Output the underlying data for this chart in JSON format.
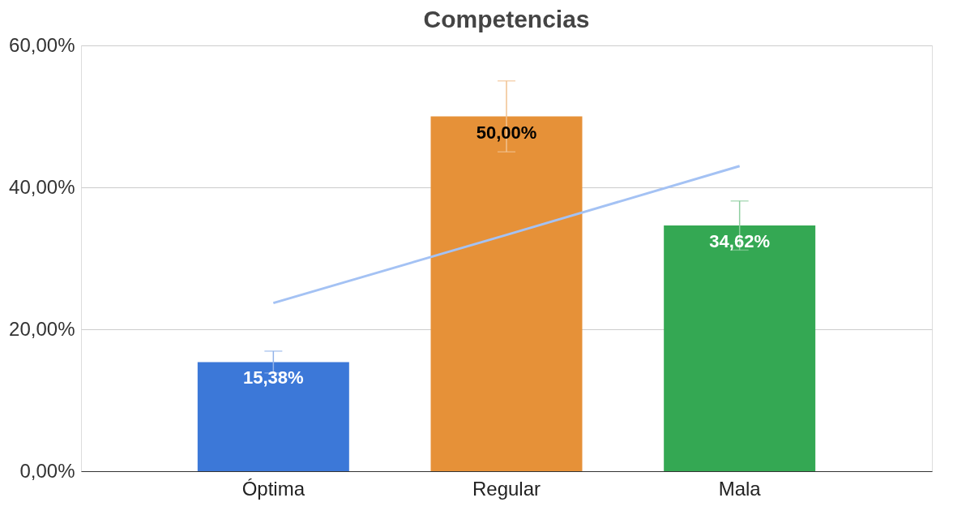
{
  "chart_data": {
    "type": "bar",
    "title": "Competencias",
    "categories": [
      "Óptima",
      "Regular",
      "Mala"
    ],
    "series": [
      {
        "values": [
          15.38,
          50.0,
          34.62
        ],
        "colors": [
          "#3c78d8",
          "#e69138",
          "#34a853"
        ],
        "errors": [
          1.54,
          5.0,
          3.46
        ],
        "value_labels": [
          "15,38%",
          "50,00%",
          "34,62%"
        ]
      },
      {
        "type": "line",
        "x": [
          "Óptima",
          "Regular",
          "Mala"
        ],
        "values": [
          23.7,
          33.3,
          43.0
        ],
        "color": "#a4c2f4"
      }
    ],
    "ylim": [
      0,
      60
    ],
    "yticks": [
      {
        "value": 0,
        "label": "0,00%"
      },
      {
        "value": 20,
        "label": "20,00%"
      },
      {
        "value": 40,
        "label": "40,00%"
      },
      {
        "value": 60,
        "label": "60,00%"
      }
    ],
    "grid": "y"
  }
}
